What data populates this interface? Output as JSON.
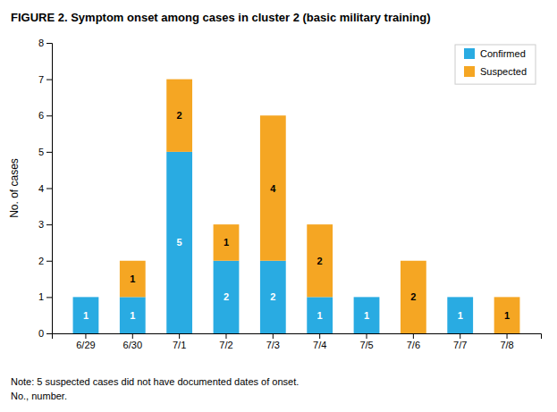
{
  "chart_data": {
    "type": "bar",
    "stacked": true,
    "title": "FIGURE 2. Symptom onset among cases in cluster 2 (basic military training)",
    "ylabel": "No. of cases",
    "categories": [
      "6/29",
      "6/30",
      "7/1",
      "7/2",
      "7/3",
      "7/4",
      "7/5",
      "7/6",
      "7/7",
      "7/8"
    ],
    "series": [
      {
        "name": "Confirmed",
        "color": "#29ABE2",
        "values": [
          1,
          1,
          5,
          2,
          2,
          1,
          1,
          0,
          1,
          0
        ]
      },
      {
        "name": "Suspected",
        "color": "#F5A623",
        "values": [
          0,
          1,
          2,
          1,
          4,
          2,
          0,
          2,
          0,
          1
        ]
      }
    ],
    "ylim": [
      0,
      8
    ],
    "yticks": [
      0,
      1,
      2,
      3,
      4,
      5,
      6,
      7,
      8
    ],
    "grid": false,
    "legend": "upper right",
    "data_labels": true,
    "annotations": [
      "Note: 5 suspected cases did not have documented dates of onset.",
      "No., number."
    ]
  }
}
